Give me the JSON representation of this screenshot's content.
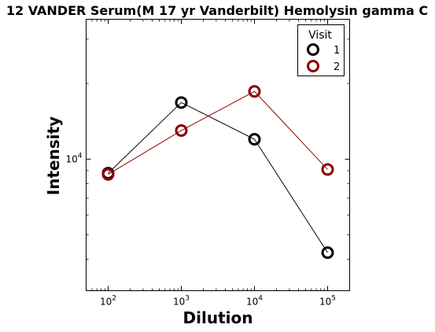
{
  "chart_data": {
    "type": "line",
    "title": "12 VANDER Serum(M 17 yr Vanderbilt) Hemolysin gamma C",
    "xlabel": "Dilution",
    "ylabel": "Intensity",
    "x_scale": "log",
    "y_scale": "log",
    "xlim": [
      50,
      200000
    ],
    "ylim": [
      3000,
      36000
    ],
    "x": [
      100,
      1000,
      10000,
      100000
    ],
    "x_ticks": [
      {
        "base": "10",
        "exp": "2",
        "value": 100
      },
      {
        "base": "10",
        "exp": "3",
        "value": 1000
      },
      {
        "base": "10",
        "exp": "4",
        "value": 10000
      },
      {
        "base": "10",
        "exp": "5",
        "value": 100000
      }
    ],
    "y_ticks": [
      {
        "base": "10",
        "exp": "4",
        "value": 10000
      }
    ],
    "legend": {
      "title": "Visit",
      "position": "top-right"
    },
    "series": [
      {
        "name": "1",
        "color": "#000000",
        "values": [
          8800,
          16800,
          12000,
          4250
        ]
      },
      {
        "name": "2",
        "color": "#8b0000",
        "values": [
          8700,
          13000,
          18600,
          9100
        ]
      }
    ],
    "marker": "hollow-circle",
    "grid": false
  }
}
